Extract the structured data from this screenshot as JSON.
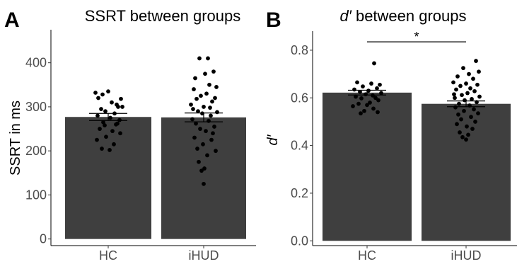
{
  "chart_data": [
    {
      "type": "bar",
      "panel_label": "A",
      "title": "SSRT between groups",
      "title_italic_part": "",
      "ylabel": "SSRT in ms",
      "ylabel_italic": false,
      "categories": [
        "HC",
        "iHUD"
      ],
      "values": [
        277,
        276
      ],
      "error": [
        [
          269,
          285
        ],
        [
          266,
          286
        ]
      ],
      "ylim": [
        -15,
        475
      ],
      "yticks": [
        0,
        100,
        200,
        300,
        400
      ],
      "ytick_labels": [
        "0",
        "100",
        "200",
        "300",
        "400"
      ],
      "significance": null,
      "points": [
        [
          320,
          328,
          335,
          305,
          332,
          310,
          300,
          295,
          318,
          290,
          285,
          280,
          275,
          270,
          265,
          260,
          250,
          245,
          240,
          232,
          225,
          215,
          205,
          202,
          262,
          258,
          300
        ],
        [
          410,
          410,
          380,
          375,
          365,
          350,
          345,
          340,
          330,
          325,
          320,
          318,
          312,
          305,
          300,
          298,
          290,
          288,
          285,
          280,
          272,
          268,
          262,
          255,
          250,
          245,
          240,
          230,
          225,
          215,
          205,
          200,
          190,
          175,
          160,
          155,
          125,
          295
        ]
      ],
      "jitter": [
        [
          -14,
          -8,
          0,
          12,
          -18,
          5,
          14,
          -10,
          18,
          -4,
          9,
          -15,
          3,
          16,
          -7,
          11,
          -12,
          6,
          17,
          -3,
          -16,
          8,
          -9,
          2,
          13,
          -5,
          20
        ],
        [
          -6,
          6,
          14,
          2,
          -12,
          8,
          18,
          -14,
          4,
          -4,
          16,
          -10,
          12,
          -18,
          0,
          9,
          -8,
          19,
          -2,
          10,
          -16,
          7,
          -11,
          15,
          -5,
          3,
          13,
          -13,
          11,
          -1,
          -9,
          17,
          5,
          -7,
          1,
          -3,
          0,
          -15
        ]
      ]
    },
    {
      "type": "bar",
      "panel_label": "B",
      "title": " between groups",
      "title_italic_part": "d′",
      "ylabel": "d′",
      "ylabel_italic": true,
      "categories": [
        "HC",
        "iHUD"
      ],
      "values": [
        0.622,
        0.575
      ],
      "error": [
        [
          0.612,
          0.632
        ],
        [
          0.563,
          0.587
        ]
      ],
      "ylim": [
        -0.02,
        0.88
      ],
      "yticks": [
        0.0,
        0.2,
        0.4,
        0.6,
        0.8
      ],
      "ytick_labels": [
        "0.0",
        "0.2",
        "0.4",
        "0.6",
        "0.8"
      ],
      "significance": {
        "from": 0,
        "to": 1,
        "y": 0.835,
        "label": "*"
      },
      "points": [
        [
          0.745,
          0.665,
          0.66,
          0.655,
          0.648,
          0.64,
          0.635,
          0.63,
          0.625,
          0.62,
          0.615,
          0.61,
          0.605,
          0.6,
          0.598,
          0.59,
          0.58,
          0.575,
          0.57,
          0.565,
          0.555,
          0.545,
          0.54,
          0.535
        ],
        [
          0.755,
          0.725,
          0.71,
          0.7,
          0.69,
          0.68,
          0.665,
          0.66,
          0.655,
          0.65,
          0.64,
          0.635,
          0.628,
          0.62,
          0.612,
          0.605,
          0.6,
          0.595,
          0.59,
          0.582,
          0.575,
          0.568,
          0.56,
          0.552,
          0.545,
          0.535,
          0.53,
          0.52,
          0.51,
          0.5,
          0.49,
          0.48,
          0.47,
          0.455,
          0.445,
          0.435,
          0.425,
          0.615
        ]
      ],
      "jitter": [
        [
          10,
          -14,
          6,
          18,
          -6,
          14,
          -18,
          2,
          -10,
          20,
          -2,
          8,
          -16,
          12,
          -8,
          16,
          4,
          -12,
          0,
          -20,
          9,
          -4,
          15,
          -9
        ],
        [
          14,
          -4,
          18,
          4,
          -12,
          10,
          -18,
          0,
          16,
          -8,
          6,
          -14,
          12,
          2,
          -6,
          19,
          -16,
          8,
          -2,
          15,
          -10,
          5,
          -15,
          11,
          -3,
          17,
          -11,
          7,
          -7,
          13,
          -13,
          1,
          9,
          -9,
          3,
          -5,
          0,
          -17
        ]
      ]
    }
  ]
}
